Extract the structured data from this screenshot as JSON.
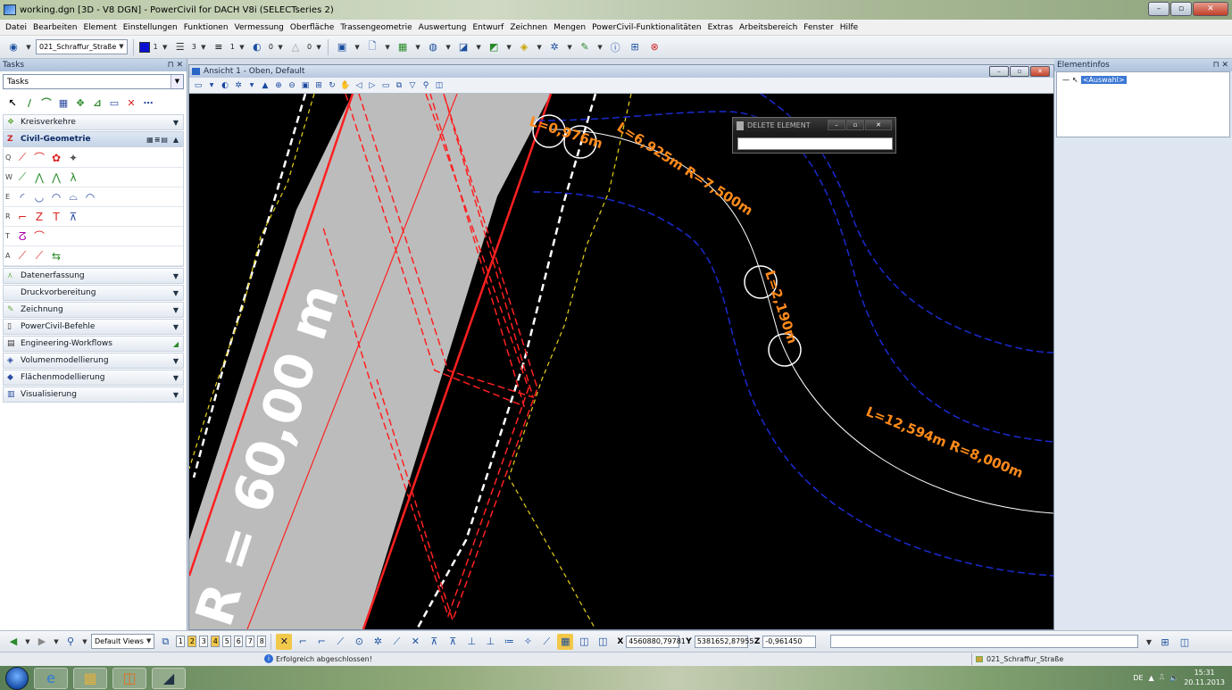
{
  "window": {
    "title": "working.dgn [3D - V8 DGN] - PowerCivil for DACH V8i (SELECTseries 2)",
    "controls": [
      "–",
      "▫",
      "✕"
    ]
  },
  "menu": [
    "Datei",
    "Bearbeiten",
    "Element",
    "Einstellungen",
    "Funktionen",
    "Vermessung",
    "Oberfläche",
    "Trassengeometrie",
    "Auswertung",
    "Entwurf",
    "Zeichnen",
    "Mengen",
    "PowerCivil-Funktionalitäten",
    "Extras",
    "Arbeitsbereich",
    "Fenster",
    "Hilfe"
  ],
  "toolbar": {
    "level_combo": "021_Schraffur_Straße",
    "color_value": "1",
    "linestyle_value": "3",
    "lineweight_value": "1",
    "transparency_value": "0",
    "priority_value": "0",
    "color_swatch": "#0a10d0"
  },
  "tasks_panel": {
    "title": "Tasks",
    "combo": "Tasks",
    "categories_before": [
      "Kreisverkehre"
    ],
    "open_category": "Civil-Geometrie",
    "row_labels": [
      "Q",
      "W",
      "E",
      "R",
      "T",
      "A"
    ],
    "categories_after": [
      "Datenerfassung",
      "Druckvorbereitung",
      "Zeichnung",
      "PowerCivil-Befehle",
      "Engineering-Workflows",
      "Volumenmodellierung",
      "Flächenmodellierung",
      "Visualisierung"
    ]
  },
  "view": {
    "title": "Ansicht 1 - Oben, Default",
    "labels": {
      "radius60": "R = 60,00 m",
      "l0976": "L=0,976m",
      "l6925": "L=6,925m R=7,500m",
      "l2190": "L=2,190m",
      "l12594": "L=12,594m R=8,000m"
    }
  },
  "popup": {
    "title": "DELETE ELEMENT",
    "controls": [
      "–",
      "▫",
      "✕"
    ]
  },
  "element_info": {
    "title": "Elementinfos",
    "selection": "<Auswahl>"
  },
  "bottom": {
    "views_combo": "Default Views",
    "view_numbers": [
      "1",
      "2",
      "3",
      "4",
      "5",
      "6",
      "7",
      "8"
    ],
    "x_label": "X",
    "x_value": "4560880,79781",
    "y_label": "Y",
    "y_value": "5381652,87955",
    "z_label": "Z",
    "z_value": "-0,961450"
  },
  "status": {
    "message": "Erfolgreich abgeschlossen!",
    "level": "021_Schraffur_Straße"
  },
  "taskbar": {
    "lang": "DE",
    "time": "15:31",
    "date": "20.11.2013"
  }
}
